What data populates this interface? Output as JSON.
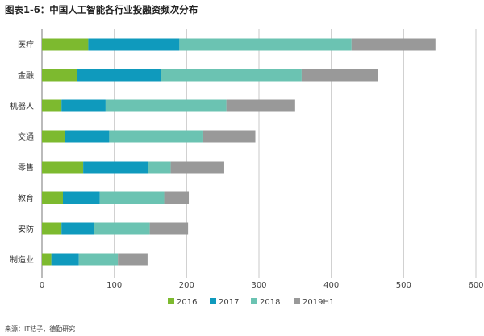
{
  "chart_data": {
    "type": "bar",
    "orientation": "horizontal",
    "stacked": true,
    "title": "图表1-6：中国人工智能各行业投融资频次分布",
    "categories": [
      "医疗",
      "金融",
      "机器人",
      "交通",
      "零售",
      "教育",
      "安防",
      "制造业"
    ],
    "series": [
      {
        "name": "2016",
        "color": "#7dba2f",
        "values": [
          64,
          49,
          27,
          32,
          57,
          29,
          27,
          13
        ]
      },
      {
        "name": "2017",
        "color": "#0f9abd",
        "values": [
          126,
          115,
          61,
          61,
          90,
          51,
          45,
          38
        ]
      },
      {
        "name": "2018",
        "color": "#6bc3b2",
        "values": [
          238,
          195,
          167,
          130,
          31,
          89,
          77,
          54
        ]
      },
      {
        "name": "2019H1",
        "color": "#999999",
        "values": [
          116,
          106,
          95,
          72,
          74,
          34,
          53,
          41
        ]
      }
    ],
    "xlim": [
      0,
      600
    ],
    "xticks": [
      "0",
      "100",
      "200",
      "300",
      "400",
      "500",
      "600"
    ],
    "grid": true,
    "legend": "bottom",
    "source": "来源：IT桔子，德勤研究"
  }
}
